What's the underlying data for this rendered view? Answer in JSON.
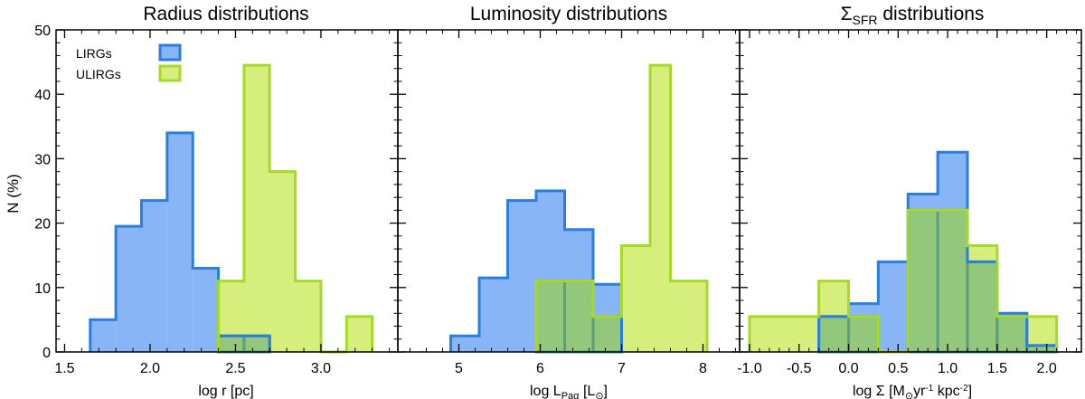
{
  "figure": {
    "ylabel": "N (%)",
    "ylim": [
      0,
      50
    ],
    "yticks": [
      0,
      10,
      20,
      30,
      40,
      50
    ],
    "colors": {
      "LIRGs_fill": "#88b5f5",
      "LIRGs_edge": "#2a7de1",
      "ULIRGs_fill": "#d5ee7c",
      "ULIRGs_edge": "#a6d92a",
      "overlap_fill": "#93c77c",
      "overlap_edge": "#5c9e7c"
    },
    "legend": {
      "position": "top-left",
      "entries": [
        {
          "label": "LIRGs",
          "series": "LIRGs"
        },
        {
          "label": "ULIRGs",
          "series": "ULIRGs"
        }
      ]
    }
  },
  "chart_data": [
    {
      "type": "bar",
      "title": "Radius distributions",
      "xlabel": "log r [pc]",
      "xlim": [
        1.45,
        3.45
      ],
      "xticks": [
        1.5,
        2.0,
        2.5,
        3.0
      ],
      "ticklabels": [
        "1.5",
        "2.0",
        "2.5",
        "3.0"
      ],
      "series": [
        {
          "name": "LIRGs",
          "edges": [
            1.65,
            1.8,
            1.95,
            2.1,
            2.25,
            2.4,
            2.55,
            2.7
          ],
          "values": [
            5,
            19.5,
            23.5,
            34,
            13,
            2.5,
            2.5
          ]
        },
        {
          "name": "ULIRGs",
          "edges": [
            2.4,
            2.55,
            2.7,
            2.85,
            3.0,
            3.15,
            3.3
          ],
          "values": [
            11,
            44.5,
            28,
            11,
            0,
            5.5
          ]
        }
      ]
    },
    {
      "type": "bar",
      "title": "Luminosity distributions",
      "xlabel": "log L_Paα [L_⊙]",
      "xlim": [
        4.25,
        8.45
      ],
      "xticks": [
        5,
        6,
        7,
        8
      ],
      "ticklabels": [
        "5",
        "6",
        "7",
        "8"
      ],
      "series": [
        {
          "name": "LIRGs",
          "edges": [
            4.9,
            5.25,
            5.6,
            5.95,
            6.3,
            6.65,
            7.0
          ],
          "values": [
            2.5,
            11.5,
            23.5,
            25,
            19,
            10.5
          ]
        },
        {
          "name": "ULIRGs",
          "edges": [
            5.95,
            6.65,
            7.0,
            7.35,
            7.6,
            8.05
          ],
          "values": [
            11,
            5.5,
            16.5,
            44.5,
            11
          ]
        }
      ]
    },
    {
      "type": "bar",
      "title": "Σ_SFR distributions",
      "xlabel": "log Σ [M_⊙yr⁻¹kpc⁻²]",
      "xlim": [
        -1.1,
        2.35
      ],
      "xticks": [
        -1.0,
        -0.5,
        0.0,
        0.5,
        1.0,
        1.5,
        2.0
      ],
      "ticklabels": [
        "-1.0",
        "-0.5",
        "0.0",
        "0.5",
        "1.0",
        "1.5",
        "2.0"
      ],
      "series": [
        {
          "name": "LIRGs",
          "edges": [
            -0.3,
            0.0,
            0.3,
            0.6,
            0.9,
            1.2,
            1.5,
            1.8,
            2.1
          ],
          "values": [
            5.5,
            7.5,
            14,
            24.5,
            31,
            14,
            6,
            1
          ]
        },
        {
          "name": "ULIRGs",
          "edges": [
            -1.0,
            -0.3,
            0.0,
            0.3,
            0.6,
            1.2,
            1.5,
            1.8,
            2.1
          ],
          "values": [
            5.5,
            11,
            5.5,
            0,
            22,
            16.5,
            5.5,
            5.5
          ]
        }
      ]
    }
  ]
}
